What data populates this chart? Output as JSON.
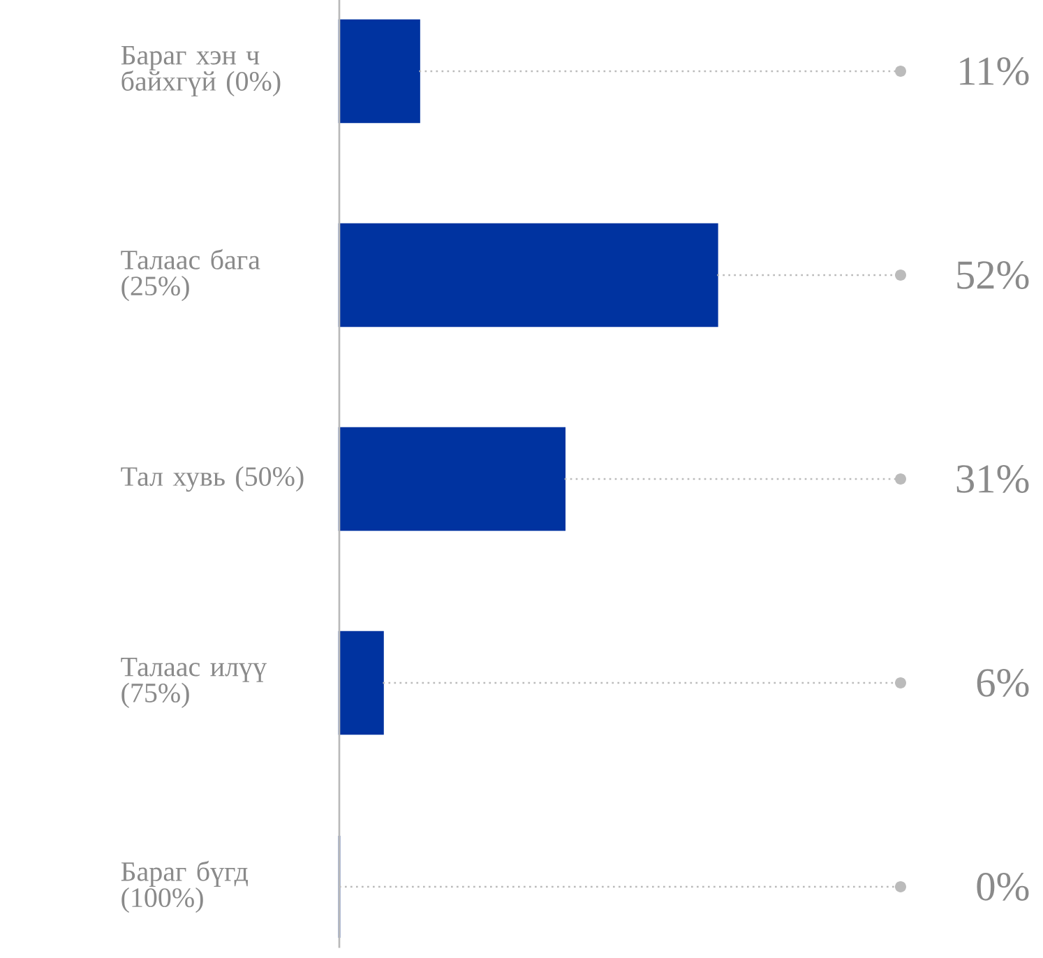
{
  "chart_data": {
    "type": "bar",
    "orientation": "horizontal",
    "categories": [
      "Бараг хэн ч байхгүй (0%)",
      "Талаас бага (25%)",
      "Тал хувь (50%)",
      "Талаас илүү (75%)",
      "Бараг бүгд (100%)"
    ],
    "values": [
      11,
      52,
      31,
      6,
      0
    ],
    "value_labels": [
      "11%",
      "52%",
      "31%",
      "6%",
      "0%"
    ],
    "color": "#0033a0"
  }
}
